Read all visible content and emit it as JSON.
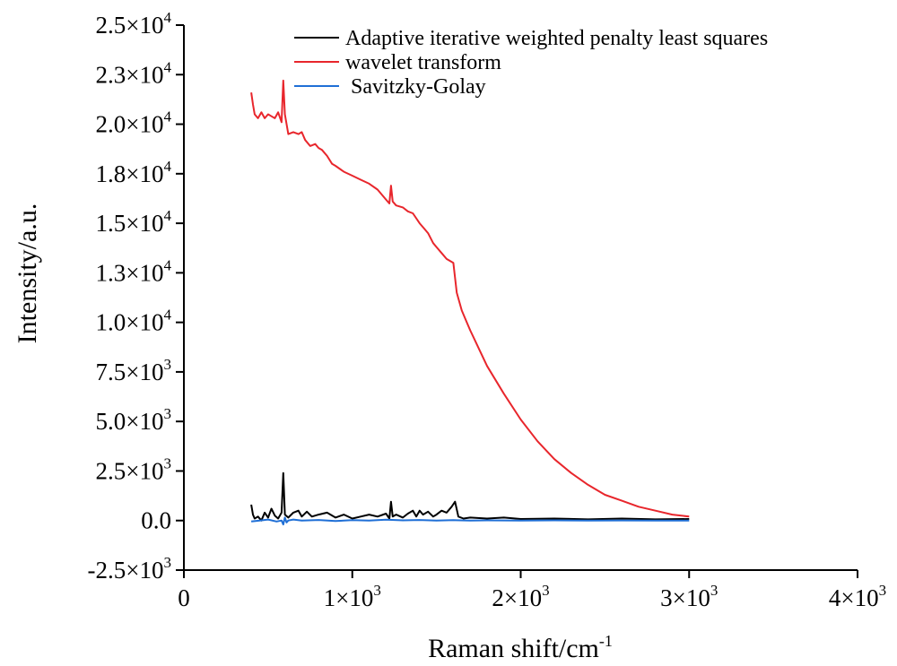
{
  "chart_data": {
    "type": "line",
    "xlabel": "Raman shift/cm",
    "xlabel_sup": "-1",
    "ylabel": "Intensity/a.u.",
    "xlim": [
      0,
      4000
    ],
    "ylim": [
      -2500,
      25000
    ],
    "grid": false,
    "legend_position": "top-right",
    "x_ticks": [
      {
        "value": 0,
        "mant": "0",
        "exp": ""
      },
      {
        "value": 1000,
        "mant": "1×10",
        "exp": "3"
      },
      {
        "value": 2000,
        "mant": "2×10",
        "exp": "3"
      },
      {
        "value": 3000,
        "mant": "3×10",
        "exp": "3"
      },
      {
        "value": 4000,
        "mant": "4×10",
        "exp": "3"
      }
    ],
    "y_ticks": [
      {
        "value": -2500,
        "mant": "-2.5×10",
        "exp": "3"
      },
      {
        "value": 0,
        "mant": "0.0",
        "exp": ""
      },
      {
        "value": 2500,
        "mant": "2.5×10",
        "exp": "3"
      },
      {
        "value": 5000,
        "mant": "5.0×10",
        "exp": "3"
      },
      {
        "value": 7500,
        "mant": "7.5×10",
        "exp": "3"
      },
      {
        "value": 10000,
        "mant": "1.0×10",
        "exp": "4"
      },
      {
        "value": 12500,
        "mant": "1.3×10",
        "exp": "4"
      },
      {
        "value": 15000,
        "mant": "1.5×10",
        "exp": "4"
      },
      {
        "value": 17500,
        "mant": "1.8×10",
        "exp": "4"
      },
      {
        "value": 20000,
        "mant": "2.0×10",
        "exp": "4"
      },
      {
        "value": 22500,
        "mant": "2.3×10",
        "exp": "4"
      },
      {
        "value": 25000,
        "mant": "2.5×10",
        "exp": "4"
      }
    ],
    "series": [
      {
        "name": "Adaptive iterative weighted penalty least squares",
        "color": "#000000",
        "x": [
          400,
          410,
          420,
          440,
          460,
          480,
          500,
          520,
          540,
          560,
          580,
          590,
          600,
          620,
          650,
          680,
          700,
          730,
          760,
          800,
          850,
          900,
          950,
          1000,
          1050,
          1100,
          1150,
          1200,
          1220,
          1230,
          1240,
          1260,
          1300,
          1330,
          1360,
          1380,
          1400,
          1420,
          1450,
          1480,
          1500,
          1530,
          1560,
          1590,
          1610,
          1630,
          1660,
          1700,
          1800,
          1900,
          2000,
          2200,
          2400,
          2600,
          2800,
          3000
        ],
        "y": [
          800,
          300,
          100,
          200,
          0,
          400,
          150,
          600,
          250,
          100,
          400,
          2400,
          300,
          150,
          400,
          500,
          200,
          450,
          200,
          300,
          400,
          150,
          300,
          100,
          200,
          300,
          200,
          350,
          100,
          950,
          200,
          300,
          150,
          350,
          500,
          200,
          500,
          300,
          450,
          200,
          300,
          500,
          400,
          700,
          950,
          200,
          100,
          150,
          100,
          150,
          80,
          100,
          60,
          100,
          60,
          80
        ]
      },
      {
        "name": "wavelet transform",
        "color": "#e8262c",
        "x": [
          400,
          410,
          420,
          440,
          460,
          480,
          500,
          520,
          540,
          560,
          580,
          590,
          600,
          620,
          650,
          680,
          700,
          720,
          750,
          780,
          800,
          820,
          850,
          880,
          900,
          950,
          1000,
          1050,
          1100,
          1150,
          1180,
          1200,
          1220,
          1230,
          1240,
          1260,
          1300,
          1330,
          1360,
          1400,
          1420,
          1450,
          1480,
          1500,
          1530,
          1560,
          1600,
          1620,
          1650,
          1680,
          1700,
          1750,
          1800,
          1900,
          2000,
          2100,
          2200,
          2300,
          2400,
          2500,
          2600,
          2700,
          2800,
          2900,
          3000
        ],
        "y": [
          21600,
          21000,
          20500,
          20300,
          20600,
          20300,
          20500,
          20400,
          20300,
          20600,
          20100,
          22200,
          20500,
          19500,
          19600,
          19500,
          19600,
          19200,
          18900,
          19000,
          18800,
          18700,
          18400,
          18000,
          17900,
          17600,
          17400,
          17200,
          17000,
          16700,
          16400,
          16200,
          16000,
          16900,
          16100,
          15900,
          15800,
          15600,
          15500,
          15000,
          14800,
          14500,
          14000,
          13800,
          13500,
          13200,
          13000,
          11500,
          10600,
          10000,
          9600,
          8700,
          7800,
          6400,
          5100,
          4000,
          3100,
          2400,
          1800,
          1300,
          1000,
          700,
          500,
          300,
          200
        ]
      },
      {
        "name": " Savitzky-Golay",
        "color": "#1f6fd6",
        "x": [
          400,
          450,
          500,
          550,
          580,
          590,
          600,
          610,
          620,
          650,
          700,
          800,
          900,
          1000,
          1100,
          1200,
          1300,
          1400,
          1500,
          1600,
          1700,
          1800,
          2000,
          2200,
          2400,
          2600,
          2800,
          3000
        ],
        "y": [
          -50,
          0,
          50,
          -50,
          0,
          -200,
          150,
          -100,
          0,
          50,
          0,
          30,
          -20,
          20,
          0,
          40,
          10,
          30,
          0,
          20,
          0,
          10,
          0,
          10,
          0,
          5,
          0,
          0
        ]
      }
    ]
  }
}
